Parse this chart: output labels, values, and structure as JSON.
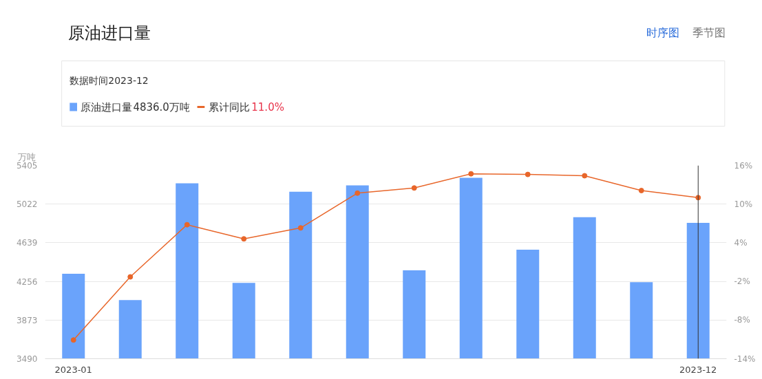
{
  "chart_data": {
    "type": "bar",
    "title": "原油进口量",
    "ylabel": "万吨",
    "categories": [
      "2023-01",
      null,
      null,
      null,
      null,
      null,
      null,
      null,
      null,
      null,
      null,
      "2023-12"
    ],
    "series": [
      {
        "name": "原油进口量",
        "color": "#6aa3fb",
        "values": [
          4331,
          4071,
          5227,
          4242,
          5145,
          5207,
          4365,
          5282,
          4571,
          4892,
          4249,
          4836
        ]
      },
      {
        "name": "累计同比",
        "type": "line",
        "axis": "y2",
        "color": "#e8662a",
        "values": [
          -11.1,
          -1.3,
          6.8,
          4.6,
          6.3,
          11.7,
          12.5,
          14.7,
          14.6,
          14.4,
          12.1,
          11.0
        ]
      }
    ],
    "ylim": [
      3490,
      5405
    ],
    "yticks": [
      3490,
      3873,
      4256,
      4639,
      5022,
      5405
    ],
    "y2lim": [
      -14,
      16
    ],
    "y2ticks": [
      {
        "value": -14,
        "label": "-14%"
      },
      {
        "value": -8,
        "label": "-8%"
      },
      {
        "value": -2,
        "label": "-2%"
      },
      {
        "value": 4,
        "label": "4%"
      },
      {
        "value": 10,
        "label": "10%"
      },
      {
        "value": 16,
        "label": "16%"
      }
    ],
    "grid": "y",
    "legend": "top",
    "marker": "circle",
    "line_style": "solid",
    "ref_lines": [
      {
        "axis": "x",
        "value": "2023-12",
        "color": "#333333"
      }
    ],
    "annotations": [
      "时序图",
      "季节图",
      "数据时间2023-12",
      "4836.0万吨",
      "11.0%"
    ]
  }
}
